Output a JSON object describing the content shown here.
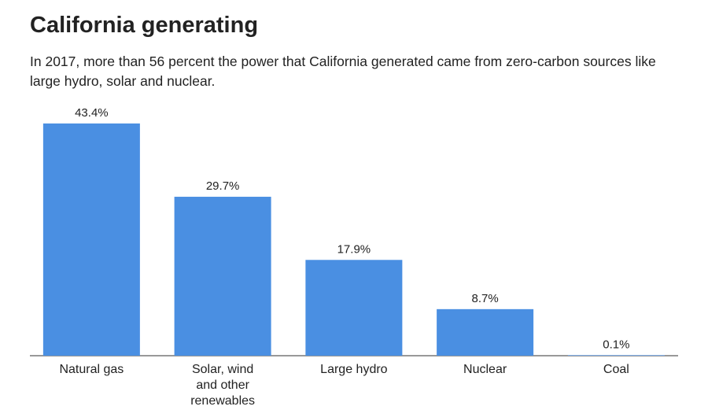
{
  "chart_data": {
    "type": "bar",
    "title": "California generating",
    "subtitle": "In 2017, more than 56 percent the power that California generated came from zero-carbon sources like large hydro, solar and nuclear.",
    "categories": [
      "Natural gas",
      "Solar, wind and other renewables",
      "Large hydro",
      "Nuclear",
      "Coal"
    ],
    "values": [
      43.4,
      29.7,
      17.9,
      8.7,
      0.1
    ],
    "value_labels": [
      "43.4%",
      "29.7%",
      "17.9%",
      "8.7%",
      "0.1%"
    ],
    "color": "#4a8fe2"
  }
}
